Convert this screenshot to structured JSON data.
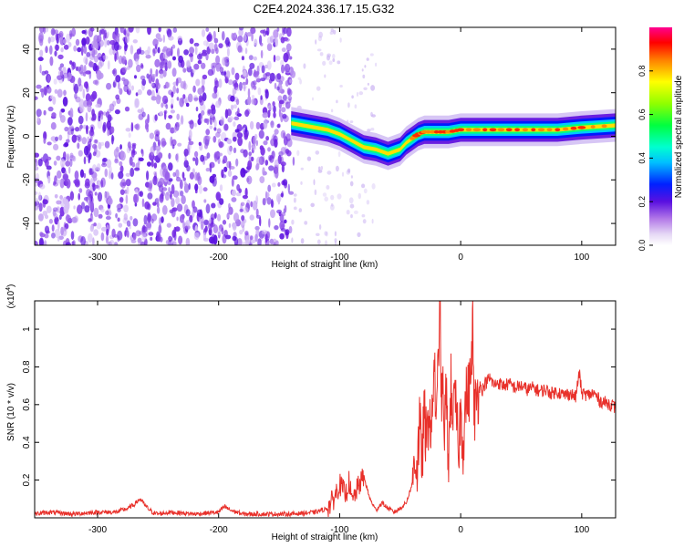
{
  "title": "C2E4.2024.336.17.15.G32",
  "chart_data": [
    {
      "type": "heatmap",
      "xlabel": "Height of straight line (km)",
      "ylabel": "Frequency (Hz)",
      "xlim": [
        -352,
        128
      ],
      "ylim": [
        -50,
        50
      ],
      "xticks": [
        -300,
        -200,
        -100,
        0,
        100
      ],
      "xtick_labels": [
        "-300",
        "-200",
        "-100",
        "0",
        "100"
      ],
      "yticks": [
        -40,
        -20,
        0,
        20,
        40
      ],
      "ytick_labels": [
        "-40",
        "-20",
        "0",
        "20",
        "40"
      ],
      "noise_region_x": [
        -352,
        -140
      ],
      "signal_track": {
        "x": [
          -140,
          -130,
          -120,
          -110,
          -100,
          -90,
          -80,
          -70,
          -60,
          -50,
          -45,
          -40,
          -35,
          -30,
          -20,
          -10,
          0,
          20,
          40,
          60,
          80,
          100,
          128
        ],
        "y": [
          6,
          5,
          4,
          3,
          1,
          -2,
          -5,
          -6,
          -8,
          -6,
          -3,
          -1,
          1,
          2,
          2,
          2,
          3,
          3,
          3,
          3,
          3,
          4,
          5
        ]
      },
      "colorbar": {
        "label": "Normalized spectral amplitude",
        "range": [
          0,
          1
        ],
        "ticks": [
          0.0,
          0.2,
          0.4,
          0.6,
          0.8
        ],
        "tick_labels": [
          "0.0",
          "0.2",
          "0.4",
          "0.6",
          "0.8"
        ]
      }
    },
    {
      "type": "line",
      "xlabel": "Height of straight line (km)",
      "ylabel": "SNR (10 * v/v)",
      "scale_note": "(x10",
      "scale_exp": "4",
      "scale_close": ")",
      "xlim": [
        -352,
        128
      ],
      "ylim": [
        0,
        1.15
      ],
      "xticks": [
        -300,
        -200,
        -100,
        0,
        100
      ],
      "xtick_labels": [
        "-300",
        "-200",
        "-100",
        "0",
        "100"
      ],
      "yticks": [
        0.2,
        0.4,
        0.6,
        0.8,
        1.0
      ],
      "ytick_labels": [
        "0.2",
        "0.4",
        "0.6",
        "0.8",
        "1"
      ],
      "series": [
        {
          "name": "SNR",
          "color": "#e8302a",
          "x": [
            -352,
            -340,
            -320,
            -300,
            -285,
            -275,
            -270,
            -265,
            -260,
            -255,
            -250,
            -240,
            -220,
            -200,
            -195,
            -190,
            -185,
            -180,
            -160,
            -140,
            -120,
            -110,
            -105,
            -100,
            -95,
            -92,
            -90,
            -85,
            -80,
            -75,
            -70,
            -65,
            -60,
            -55,
            -50,
            -45,
            -40,
            -38,
            -36,
            -34,
            -32,
            -30,
            -28,
            -26,
            -24,
            -22,
            -20,
            -18,
            -17,
            -16,
            -15,
            -14,
            -12,
            -10,
            -8,
            -6,
            -4,
            -2,
            0,
            2,
            4,
            8,
            10,
            11,
            12,
            14,
            16,
            18,
            20,
            24,
            28,
            30,
            35,
            40,
            45,
            50,
            55,
            60,
            65,
            70,
            75,
            80,
            85,
            90,
            95,
            98,
            100,
            105,
            110,
            115,
            120,
            125,
            128
          ],
          "y": [
            0.02,
            0.03,
            0.02,
            0.03,
            0.03,
            0.05,
            0.07,
            0.1,
            0.06,
            0.03,
            0.02,
            0.03,
            0.02,
            0.03,
            0.06,
            0.04,
            0.03,
            0.02,
            0.02,
            0.02,
            0.03,
            0.05,
            0.1,
            0.18,
            0.12,
            0.2,
            0.08,
            0.16,
            0.22,
            0.1,
            0.04,
            0.08,
            0.05,
            0.03,
            0.05,
            0.08,
            0.18,
            0.35,
            0.25,
            0.5,
            0.3,
            0.55,
            0.35,
            0.62,
            0.4,
            0.88,
            0.45,
            0.98,
            1.15,
            0.6,
            0.75,
            0.42,
            0.65,
            0.3,
            0.7,
            0.55,
            0.6,
            0.35,
            0.55,
            0.4,
            0.62,
            0.7,
            1.04,
            0.5,
            0.6,
            0.66,
            0.7,
            0.68,
            0.71,
            0.74,
            0.7,
            0.72,
            0.7,
            0.71,
            0.69,
            0.7,
            0.68,
            0.69,
            0.67,
            0.68,
            0.66,
            0.67,
            0.65,
            0.66,
            0.64,
            0.77,
            0.66,
            0.65,
            0.66,
            0.62,
            0.61,
            0.6,
            0.58
          ]
        }
      ]
    }
  ]
}
